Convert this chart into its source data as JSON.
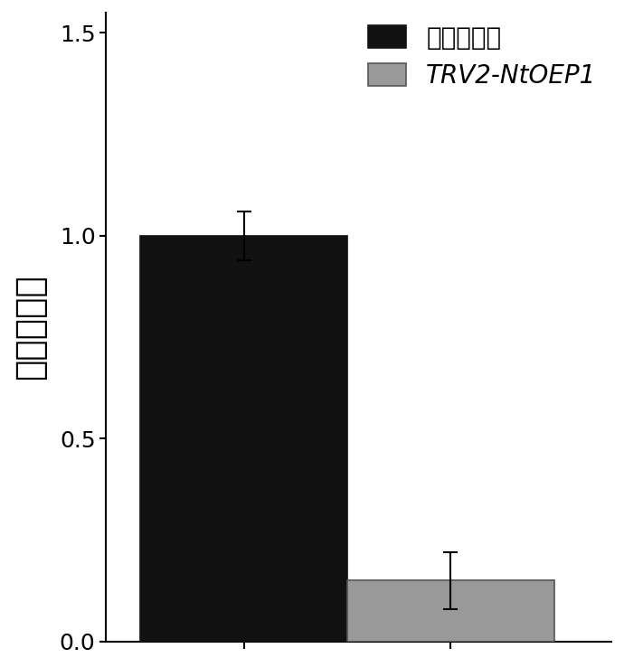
{
  "categories": [
    "空载体对照",
    "TRV2-NtOEP1"
  ],
  "values": [
    1.0,
    0.15
  ],
  "errors": [
    0.06,
    0.07
  ],
  "bar_colors": [
    "#111111",
    "#999999"
  ],
  "bar_edge_colors": [
    "#111111",
    "#555555"
  ],
  "ylabel": "相对表达量",
  "ylim": [
    0,
    1.55
  ],
  "yticks": [
    0.0,
    0.5,
    1.0,
    1.5
  ],
  "legend_labels": [
    "空载体对照",
    "TRV2-NtOEP1"
  ],
  "bar_width": 0.45,
  "background_color": "#ffffff",
  "legend_fontsize": 20,
  "ylabel_fontsize": 28,
  "tick_fontsize": 18
}
